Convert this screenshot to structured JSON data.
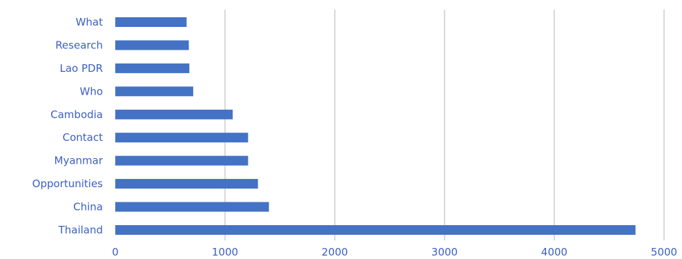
{
  "chart_data": {
    "type": "bar",
    "orientation": "horizontal",
    "categories": [
      "What",
      "Research",
      "Lao PDR",
      "Who",
      "Cambodia",
      "Contact",
      "Myanmar",
      "Opportunities",
      "China",
      "Thailand"
    ],
    "values": [
      650,
      670,
      675,
      710,
      1070,
      1210,
      1210,
      1300,
      1400,
      4740
    ],
    "xlim": [
      0,
      5000
    ],
    "xticks": [
      "0",
      "1000",
      "2000",
      "3000",
      "4000",
      "5000"
    ],
    "title": "",
    "xlabel": "",
    "ylabel": "",
    "grid": "vertical",
    "legend": "none"
  },
  "colors": {
    "bar": "#4472c4",
    "label": "#3a5fc2",
    "grid": "#d9d9d9"
  }
}
